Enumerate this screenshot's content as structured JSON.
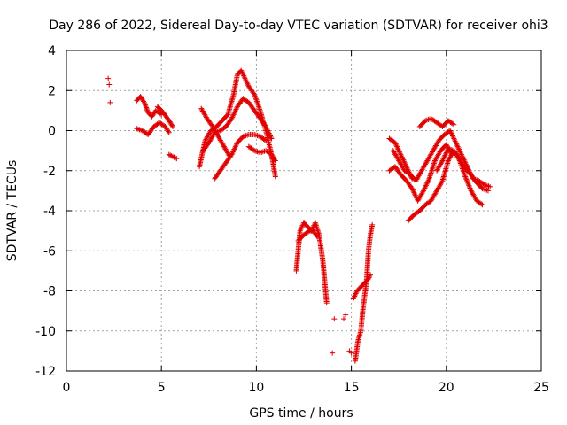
{
  "chart_data": {
    "type": "scatter",
    "title": "Day 286 of 2022, Sidereal Day-to-day VTEC variation (SDTVAR) for receiver ohi3",
    "xlabel": "GPS time / hours",
    "ylabel": "SDTVAR / TECUs",
    "xlim": [
      0,
      25
    ],
    "ylim": [
      -12,
      4
    ],
    "x_ticks": [
      "0",
      "5",
      "10",
      "15",
      "20",
      "25"
    ],
    "y_ticks": [
      "4",
      "2",
      "0",
      "-2",
      "-4",
      "-6",
      "-8",
      "-10",
      "-12"
    ],
    "grid": true,
    "marker": "+",
    "color": "#e00000",
    "series": [
      {
        "name": "t1",
        "x": [
          2.2,
          2.25,
          2.3
        ],
        "y": [
          2.6,
          2.3,
          1.4
        ]
      },
      {
        "name": "t2",
        "x": [
          3.7,
          3.9,
          4.1,
          4.3,
          4.5,
          4.7,
          5.0
        ],
        "y": [
          1.5,
          1.7,
          1.4,
          0.9,
          0.7,
          1.0,
          0.8
        ]
      },
      {
        "name": "t3",
        "x": [
          3.7,
          4.0,
          4.3,
          4.6,
          4.9,
          5.2,
          5.4
        ],
        "y": [
          0.1,
          0.0,
          -0.2,
          0.2,
          0.4,
          0.2,
          -0.1
        ]
      },
      {
        "name": "t4",
        "x": [
          4.8,
          5.1,
          5.4,
          5.6
        ],
        "y": [
          1.2,
          0.9,
          0.5,
          0.2
        ]
      },
      {
        "name": "t5",
        "x": [
          5.4,
          5.6,
          5.8
        ],
        "y": [
          -1.2,
          -1.3,
          -1.4
        ]
      },
      {
        "name": "t6",
        "x": [
          7.0,
          7.3,
          7.6,
          7.9,
          8.2,
          8.5,
          8.8,
          9.0,
          9.2,
          9.4,
          9.6,
          9.9,
          10.2,
          10.5,
          10.8,
          11.0
        ],
        "y": [
          -1.8,
          -0.5,
          0.0,
          0.2,
          0.5,
          0.8,
          1.8,
          2.8,
          3.0,
          2.6,
          2.2,
          1.8,
          1.0,
          0.0,
          -1.2,
          -2.3
        ]
      },
      {
        "name": "t7",
        "x": [
          7.2,
          7.5,
          7.8,
          8.1,
          8.4,
          8.7,
          9.0,
          9.3,
          9.6,
          9.9,
          10.2,
          10.5,
          10.8
        ],
        "y": [
          -1.0,
          -0.6,
          -0.1,
          0.0,
          0.2,
          0.6,
          1.2,
          1.6,
          1.4,
          1.0,
          0.6,
          0.2,
          -0.4
        ]
      },
      {
        "name": "t8",
        "x": [
          7.8,
          8.1,
          8.4,
          8.7,
          9.0,
          9.3,
          9.6,
          9.9,
          10.2,
          10.5
        ],
        "y": [
          -2.4,
          -2.0,
          -1.6,
          -1.2,
          -0.6,
          -0.3,
          -0.2,
          -0.2,
          -0.3,
          -0.5
        ]
      },
      {
        "name": "t9",
        "x": [
          7.1,
          7.4,
          7.7,
          8.0,
          8.3,
          8.6
        ],
        "y": [
          1.1,
          0.6,
          0.2,
          -0.3,
          -0.8,
          -1.3
        ]
      },
      {
        "name": "t10",
        "x": [
          9.6,
          9.9,
          10.2,
          10.5,
          10.8,
          11.0
        ],
        "y": [
          -0.8,
          -1.0,
          -1.1,
          -1.0,
          -1.2,
          -1.5
        ]
      },
      {
        "name": "t11",
        "x": [
          12.1,
          12.3,
          12.5,
          12.7,
          12.9,
          13.1,
          13.3,
          13.5,
          13.7
        ],
        "y": [
          -7.0,
          -5.0,
          -4.6,
          -4.8,
          -5.0,
          -4.6,
          -5.2,
          -6.5,
          -8.6
        ]
      },
      {
        "name": "t12",
        "x": [
          12.2,
          12.5,
          12.8,
          13.0,
          13.2
        ],
        "y": [
          -5.5,
          -5.2,
          -5.0,
          -5.0,
          -5.3
        ]
      },
      {
        "name": "t13",
        "x": [
          14.0,
          14.1,
          14.6,
          14.7,
          14.9,
          15.0
        ],
        "y": [
          -11.1,
          -9.4,
          -9.4,
          -9.2,
          -11.0,
          -11.1
        ]
      },
      {
        "name": "t14",
        "x": [
          15.2,
          15.35,
          15.5,
          15.6,
          15.8,
          15.9,
          16.0,
          16.1
        ],
        "y": [
          -11.5,
          -10.5,
          -10.0,
          -9.0,
          -7.5,
          -6.0,
          -5.2,
          -4.7
        ]
      },
      {
        "name": "t15",
        "x": [
          15.1,
          15.3,
          15.5,
          15.7,
          15.9,
          16.0
        ],
        "y": [
          -8.4,
          -8.0,
          -7.8,
          -7.6,
          -7.4,
          -7.2
        ]
      },
      {
        "name": "t16",
        "x": [
          17.0,
          17.3,
          17.6,
          17.9,
          18.2,
          18.5,
          18.8,
          19.1,
          19.4,
          19.7,
          20.0,
          20.3
        ],
        "y": [
          -2.0,
          -1.8,
          -2.2,
          -2.5,
          -2.9,
          -3.5,
          -3.0,
          -2.4,
          -1.5,
          -1.0,
          -0.7,
          -1.2
        ]
      },
      {
        "name": "t17",
        "x": [
          17.2,
          17.5,
          17.8,
          18.1,
          18.4,
          18.7,
          19.0,
          19.3,
          19.6,
          19.9,
          20.2,
          20.5,
          20.8,
          21.1,
          21.4,
          21.7,
          22.0,
          22.3
        ],
        "y": [
          -1.0,
          -1.5,
          -2.0,
          -2.2,
          -2.5,
          -2.0,
          -1.5,
          -1.0,
          -0.5,
          -0.2,
          0.0,
          -0.6,
          -1.2,
          -1.8,
          -2.4,
          -2.5,
          -2.7,
          -2.8
        ]
      },
      {
        "name": "t18",
        "x": [
          18.0,
          18.3,
          18.6,
          18.9,
          19.2,
          19.5,
          19.8,
          20.1,
          20.4,
          20.7,
          21.0,
          21.3,
          21.6,
          21.9
        ],
        "y": [
          -4.5,
          -4.2,
          -4.0,
          -3.7,
          -3.5,
          -3.0,
          -2.5,
          -1.5,
          -1.0,
          -1.5,
          -2.3,
          -3.0,
          -3.5,
          -3.7
        ]
      },
      {
        "name": "t19",
        "x": [
          18.6,
          18.9,
          19.2,
          19.5,
          19.8,
          20.1,
          20.4
        ],
        "y": [
          0.2,
          0.5,
          0.6,
          0.4,
          0.2,
          0.5,
          0.3
        ]
      },
      {
        "name": "t20",
        "x": [
          17.0,
          17.3,
          17.6,
          17.9,
          18.2
        ],
        "y": [
          -0.4,
          -0.6,
          -1.2,
          -1.8,
          -2.4
        ]
      },
      {
        "name": "t21",
        "x": [
          19.5,
          19.8,
          20.1,
          20.4,
          20.7,
          21.0,
          21.3,
          21.6,
          21.9,
          22.2
        ],
        "y": [
          -2.0,
          -1.5,
          -0.9,
          -1.0,
          -1.4,
          -1.9,
          -2.2,
          -2.6,
          -2.9,
          -3.0
        ]
      }
    ]
  }
}
